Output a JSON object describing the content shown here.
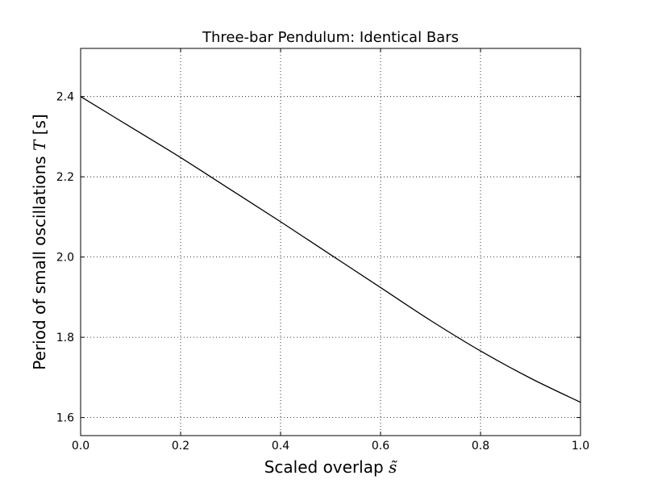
{
  "chart_data": {
    "type": "line",
    "title": "Three-bar Pendulum: Identical Bars",
    "xlabel": {
      "text": "Scaled overlap ",
      "symbol": "s̃"
    },
    "ylabel": {
      "text": "Period of small oscillations ",
      "symbol": "T",
      "suffix": " [s]"
    },
    "xlim": [
      0.0,
      1.0
    ],
    "ylim": [
      1.555,
      2.52
    ],
    "grid": true,
    "grid_style": "dotted",
    "line_color": "#000000",
    "xticks": [
      0.0,
      0.2,
      0.4,
      0.6,
      0.8,
      1.0
    ],
    "xtick_labels": [
      "0.0",
      "0.2",
      "0.4",
      "0.6",
      "0.8",
      "1.0"
    ],
    "yticks": [
      1.6,
      1.8,
      2.0,
      2.2,
      2.4
    ],
    "ytick_labels": [
      "1.6",
      "1.8",
      "2.0",
      "2.2",
      "2.4"
    ],
    "series": [
      {
        "x": [
          0.0,
          0.1,
          0.2,
          0.3,
          0.4,
          0.5,
          0.6,
          0.7,
          0.8,
          0.9,
          1.0
        ],
        "y": [
          2.4,
          2.324,
          2.248,
          2.168,
          2.088,
          2.006,
          1.924,
          1.842,
          1.766,
          1.698,
          1.638
        ]
      }
    ]
  }
}
